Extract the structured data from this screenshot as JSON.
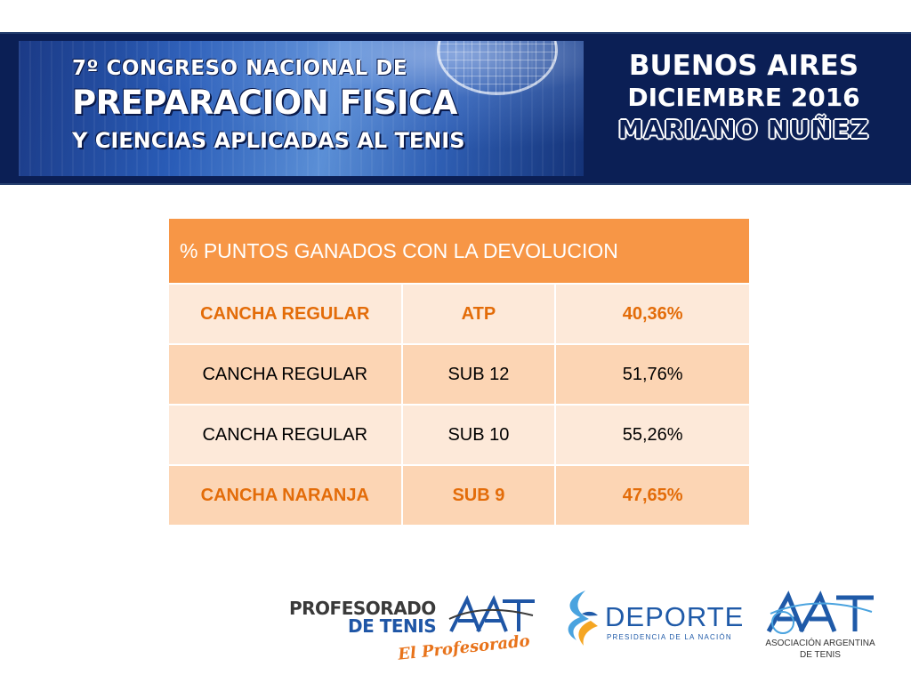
{
  "banner": {
    "line1": "7º CONGRESO NACIONAL DE",
    "line2": "PREPARACION FISICA",
    "line3": "Y CIENCIAS APLICADAS AL TENIS",
    "city": "BUENOS AIRES",
    "date": "DICIEMBRE 2016",
    "name": "MARIANO NUÑEZ"
  },
  "table": {
    "header": "% PUNTOS GANADOS CON LA DEVOLUCION",
    "rows": [
      {
        "court": "CANCHA REGULAR",
        "category": "ATP",
        "value": "40,36%",
        "highlight": true
      },
      {
        "court": "CANCHA REGULAR",
        "category": "SUB 12",
        "value": "51,76%",
        "highlight": false
      },
      {
        "court": "CANCHA REGULAR",
        "category": "SUB 10",
        "value": "55,26%",
        "highlight": false
      },
      {
        "court": "CANCHA NARANJA",
        "category": "SUB 9",
        "value": "47,65%",
        "highlight": true
      }
    ]
  },
  "logos": {
    "profesorado": {
      "line1": "PROFESORADO",
      "line2": "DE TENIS",
      "tagline": "El Profesorado",
      "mark": "AAT"
    },
    "deporte": {
      "word": "DEPORTE",
      "sub": "PRESIDENCIA DE LA NACIÓN"
    },
    "asociacion": {
      "mark": "AAT",
      "line1": "ASOCIACIÓN ARGENTINA",
      "line2": "DE TENIS"
    }
  },
  "colors": {
    "banner_bg": "#0b1f55",
    "table_header": "#f79646",
    "accent_text": "#e36c09",
    "row_light": "#fde9d9",
    "row_dark": "#fcd5b4",
    "deporte_blue": "#1f5aa8"
  }
}
